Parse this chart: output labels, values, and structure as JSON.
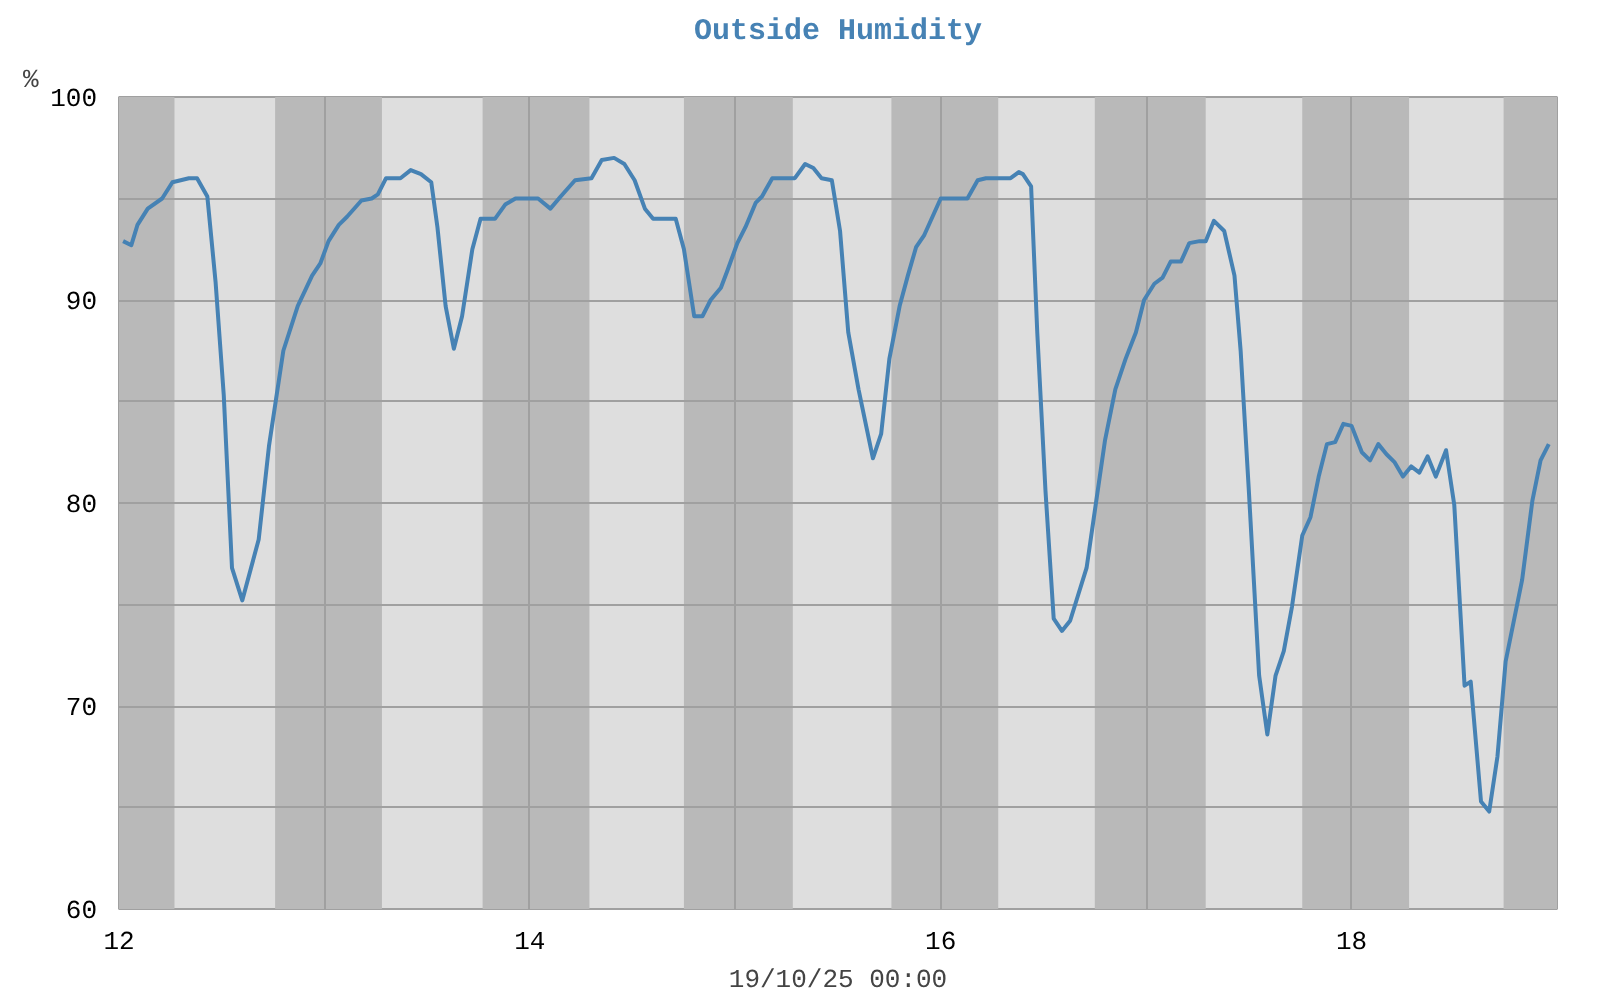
{
  "chart_data": {
    "type": "line",
    "title": "Outside Humidity",
    "xlabel": "19/10/25 00:00",
    "ylabel": "%",
    "x": [
      12.02,
      12.06,
      12.09,
      12.14,
      12.21,
      12.26,
      12.34,
      12.38,
      12.43,
      12.47,
      12.51,
      12.55,
      12.6,
      12.68,
      12.73,
      12.8,
      12.87,
      12.94,
      12.98,
      13.02,
      13.07,
      13.11,
      13.18,
      13.23,
      13.26,
      13.3,
      13.37,
      13.42,
      13.47,
      13.52,
      13.55,
      13.59,
      13.63,
      13.67,
      13.72,
      13.76,
      13.83,
      13.88,
      13.93,
      14.04,
      14.1,
      14.15,
      14.22,
      14.3,
      14.35,
      14.41,
      14.46,
      14.51,
      14.56,
      14.6,
      14.71,
      14.75,
      14.8,
      14.84,
      14.88,
      14.93,
      14.96,
      15.01,
      15.05,
      15.1,
      15.13,
      15.18,
      15.29,
      15.34,
      15.38,
      15.42,
      15.47,
      15.51,
      15.55,
      15.6,
      15.67,
      15.71,
      15.75,
      15.8,
      15.84,
      15.88,
      15.92,
      16.0,
      16.13,
      16.18,
      16.22,
      16.34,
      16.38,
      16.4,
      16.44,
      16.47,
      16.51,
      16.55,
      16.59,
      16.63,
      16.71,
      16.75,
      16.8,
      16.85,
      16.9,
      16.95,
      16.99,
      17.04,
      17.08,
      17.12,
      17.17,
      17.21,
      17.26,
      17.29,
      17.33,
      17.38,
      17.43,
      17.46,
      17.5,
      17.55,
      17.59,
      17.63,
      17.67,
      17.71,
      17.76,
      17.8,
      17.84,
      17.88,
      17.92,
      17.96,
      18.0,
      18.05,
      18.09,
      18.13,
      18.17,
      18.21,
      18.25,
      18.29,
      18.33,
      18.37,
      18.41,
      18.46,
      18.5,
      18.55,
      18.58,
      18.63,
      18.67,
      18.71,
      18.75,
      18.83,
      18.88,
      18.92,
      18.96
    ],
    "series": [
      {
        "color": "#4682b4",
        "values": [
          92.9,
          92.7,
          93.7,
          94.5,
          95.0,
          95.8,
          96.0,
          96.0,
          95.1,
          90.9,
          85.3,
          76.8,
          75.2,
          78.2,
          82.8,
          87.5,
          89.7,
          91.2,
          91.8,
          92.9,
          93.7,
          94.1,
          94.9,
          95.0,
          95.2,
          96.0,
          96.0,
          96.4,
          96.2,
          95.8,
          93.6,
          89.7,
          87.6,
          89.2,
          92.5,
          94.0,
          94.0,
          94.7,
          95.0,
          95.0,
          94.5,
          95.1,
          95.9,
          96.0,
          96.9,
          97.0,
          96.7,
          95.9,
          94.5,
          94.0,
          94.0,
          92.5,
          89.2,
          89.2,
          90.0,
          90.6,
          91.4,
          92.8,
          93.6,
          94.8,
          95.1,
          96.0,
          96.0,
          96.7,
          96.5,
          96.0,
          95.9,
          93.4,
          88.4,
          85.6,
          82.2,
          83.4,
          87.1,
          89.7,
          91.2,
          92.6,
          93.2,
          95.0,
          95.0,
          95.9,
          96.0,
          96.0,
          96.3,
          96.2,
          95.6,
          88.4,
          80.6,
          74.3,
          73.7,
          74.2,
          76.8,
          79.6,
          83.1,
          85.6,
          87.1,
          88.4,
          90.0,
          90.8,
          91.1,
          91.9,
          91.9,
          92.8,
          92.9,
          92.9,
          93.9,
          93.4,
          91.2,
          87.5,
          80.6,
          71.5,
          68.6,
          71.5,
          72.7,
          74.9,
          78.4,
          79.3,
          81.3,
          82.9,
          83.0,
          83.9,
          83.8,
          82.5,
          82.1,
          82.9,
          82.4,
          82.0,
          81.3,
          81.8,
          81.5,
          82.3,
          81.3,
          82.6,
          79.9,
          71.0,
          71.2,
          65.3,
          64.8,
          67.5,
          72.2,
          76.2,
          80.1,
          82.1,
          82.9
        ]
      }
    ],
    "xlim": [
      12,
      19
    ],
    "ylim": [
      60,
      100
    ],
    "xticks": [
      12,
      {
        "value": 13,
        "label": null
      },
      14,
      {
        "value": 15,
        "label": null
      },
      16,
      {
        "value": 17,
        "label": null
      },
      18
    ],
    "yticks": [
      60,
      {
        "value": 65,
        "label": null
      },
      70,
      {
        "value": 75,
        "label": null
      },
      80,
      {
        "value": 85,
        "label": null
      },
      90,
      {
        "value": 95,
        "label": null
      },
      100
    ],
    "grid": true,
    "bands": [
      {
        "axis": "x",
        "from": 12,
        "to": 12.27,
        "color": "#b9b9b9"
      },
      {
        "axis": "x",
        "from": 12.76,
        "to": 13.28,
        "color": "#b9b9b9"
      },
      {
        "axis": "x",
        "from": 13.77,
        "to": 14.29,
        "color": "#b9b9b9"
      },
      {
        "axis": "x",
        "from": 14.75,
        "to": 15.28,
        "color": "#b9b9b9"
      },
      {
        "axis": "x",
        "from": 15.76,
        "to": 16.28,
        "color": "#b9b9b9"
      },
      {
        "axis": "x",
        "from": 16.75,
        "to": 17.29,
        "color": "#b9b9b9"
      },
      {
        "axis": "x",
        "from": 17.76,
        "to": 18.28,
        "color": "#b9b9b9"
      },
      {
        "axis": "x",
        "from": 18.74,
        "to": 19,
        "color": "#b9b9b9"
      }
    ]
  }
}
